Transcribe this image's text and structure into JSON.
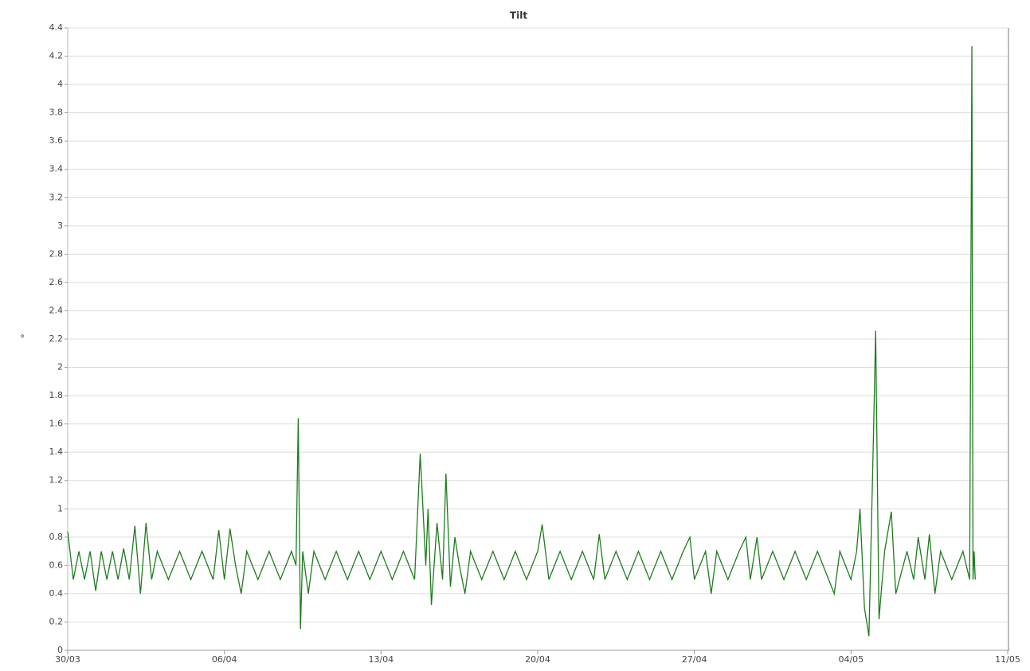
{
  "chart_data": {
    "type": "line",
    "title": "Tilt",
    "y_label": "°",
    "x": [
      0,
      0.25,
      0.5,
      0.75,
      1,
      1.25,
      1.5,
      1.75,
      2,
      2.25,
      2.5,
      2.75,
      3,
      3.25,
      3.5,
      3.75,
      4,
      4.5,
      5,
      5.5,
      6,
      6.5,
      6.75,
      7,
      7.25,
      7.5,
      7.75,
      8,
      8.5,
      9,
      9.5,
      10,
      10.2,
      10.3,
      10.4,
      10.5,
      10.75,
      11,
      11.5,
      12,
      12.5,
      13,
      13.5,
      14,
      14.5,
      15,
      15.5,
      15.75,
      16,
      16.1,
      16.25,
      16.5,
      16.75,
      16.9,
      17.1,
      17.3,
      17.5,
      17.75,
      18,
      18.5,
      19,
      19.5,
      20,
      20.5,
      21,
      21.2,
      21.5,
      22,
      22.5,
      23,
      23.5,
      23.75,
      24,
      24.5,
      25,
      25.5,
      26,
      26.5,
      27,
      27.5,
      27.8,
      28,
      28.5,
      28.75,
      29,
      29.5,
      30,
      30.3,
      30.5,
      30.8,
      31,
      31.5,
      32,
      32.5,
      33,
      33.5,
      34,
      34.25,
      34.5,
      35,
      35.25,
      35.4,
      35.6,
      35.8,
      36,
      36.1,
      36.25,
      36.5,
      36.8,
      37,
      37.5,
      37.8,
      38,
      38.3,
      38.5,
      38.75,
      39,
      39.5,
      40,
      40.3,
      40.4,
      40.45,
      40.5,
      40.55
    ],
    "series": [
      {
        "name": "Tilt",
        "color": "#1e7b1e",
        "values": [
          0.84,
          0.5,
          0.7,
          0.5,
          0.7,
          0.42,
          0.7,
          0.5,
          0.7,
          0.5,
          0.72,
          0.5,
          0.88,
          0.4,
          0.9,
          0.5,
          0.7,
          0.5,
          0.7,
          0.5,
          0.7,
          0.5,
          0.85,
          0.5,
          0.86,
          0.6,
          0.4,
          0.7,
          0.5,
          0.7,
          0.5,
          0.7,
          0.6,
          1.64,
          0.15,
          0.7,
          0.4,
          0.7,
          0.5,
          0.7,
          0.5,
          0.7,
          0.5,
          0.7,
          0.5,
          0.7,
          0.5,
          1.39,
          0.6,
          1.0,
          0.32,
          0.9,
          0.5,
          1.25,
          0.45,
          0.8,
          0.6,
          0.4,
          0.7,
          0.5,
          0.7,
          0.5,
          0.7,
          0.5,
          0.7,
          0.89,
          0.5,
          0.7,
          0.5,
          0.7,
          0.5,
          0.82,
          0.5,
          0.7,
          0.5,
          0.7,
          0.5,
          0.7,
          0.5,
          0.7,
          0.8,
          0.5,
          0.7,
          0.4,
          0.7,
          0.5,
          0.7,
          0.8,
          0.5,
          0.8,
          0.5,
          0.7,
          0.5,
          0.7,
          0.5,
          0.7,
          0.5,
          0.4,
          0.7,
          0.5,
          0.7,
          1.0,
          0.3,
          0.1,
          1.5,
          2.26,
          0.22,
          0.7,
          0.98,
          0.4,
          0.7,
          0.5,
          0.8,
          0.5,
          0.82,
          0.4,
          0.7,
          0.5,
          0.7,
          0.5,
          4.27,
          0.5,
          0.7,
          0.5
        ]
      }
    ],
    "xlim": [
      0,
      42
    ],
    "xticks": [
      {
        "value": 0,
        "label": "30/03"
      },
      {
        "value": 7,
        "label": "06/04"
      },
      {
        "value": 14,
        "label": "13/04"
      },
      {
        "value": 21,
        "label": "20/04"
      },
      {
        "value": 28,
        "label": "27/04"
      },
      {
        "value": 35,
        "label": "04/05"
      },
      {
        "value": 42,
        "label": "11/05"
      }
    ],
    "ylim": [
      0,
      4.4
    ],
    "yticks": [
      0,
      0.2,
      0.4,
      0.6,
      0.8,
      1,
      1.2,
      1.4,
      1.6,
      1.8,
      2,
      2.2,
      2.4,
      2.6,
      2.8,
      3,
      3.2,
      3.4,
      3.6,
      3.8,
      4,
      4.2,
      4.4
    ],
    "grid": true
  }
}
